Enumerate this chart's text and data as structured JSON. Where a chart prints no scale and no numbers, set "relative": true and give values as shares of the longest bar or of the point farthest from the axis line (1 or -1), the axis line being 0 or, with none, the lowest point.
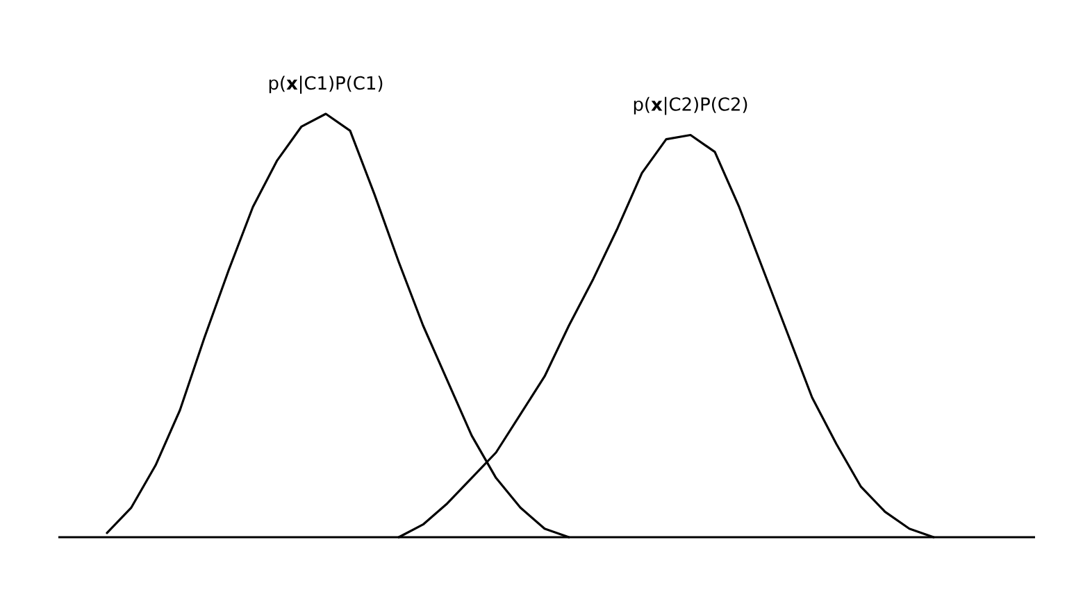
{
  "chart_data": {
    "type": "line",
    "relative": true,
    "marker": "none",
    "line_style": "solid",
    "categories": [
      null,
      null,
      null,
      null,
      null,
      null,
      null,
      null,
      null,
      null,
      null,
      null,
      null,
      null,
      null,
      null,
      null,
      null,
      null,
      null,
      null,
      null,
      null,
      null,
      null,
      null,
      null,
      null,
      null,
      null,
      null,
      null,
      null,
      null,
      null,
      null,
      null,
      null,
      null,
      null,
      null
    ],
    "series": [
      {
        "name": "p(**x**|C1)P(C1)",
        "color": "#000000",
        "values": [
          null,
          null,
          0.01,
          0.07,
          0.17,
          0.3,
          0.47,
          0.63,
          0.78,
          0.89,
          0.97,
          1.0,
          0.96,
          0.81,
          0.65,
          0.5,
          0.37,
          0.24,
          0.14,
          0.07,
          0.02,
          0.0,
          null,
          null,
          null,
          null,
          null,
          null,
          null,
          null,
          null,
          null,
          null,
          null,
          null,
          null,
          null,
          null,
          null,
          null,
          null
        ]
      },
      {
        "name": "p(**x**|C2)P(C2)",
        "color": "#000000",
        "values": [
          null,
          null,
          null,
          null,
          null,
          null,
          null,
          null,
          null,
          null,
          null,
          null,
          null,
          null,
          0.0,
          0.03,
          0.08,
          0.14,
          0.2,
          0.29,
          0.38,
          0.5,
          0.61,
          0.73,
          0.86,
          0.94,
          0.95,
          0.91,
          0.78,
          0.63,
          0.48,
          0.33,
          0.22,
          0.12,
          0.06,
          0.02,
          0.0,
          null,
          null,
          null,
          null
        ]
      }
    ]
  }
}
